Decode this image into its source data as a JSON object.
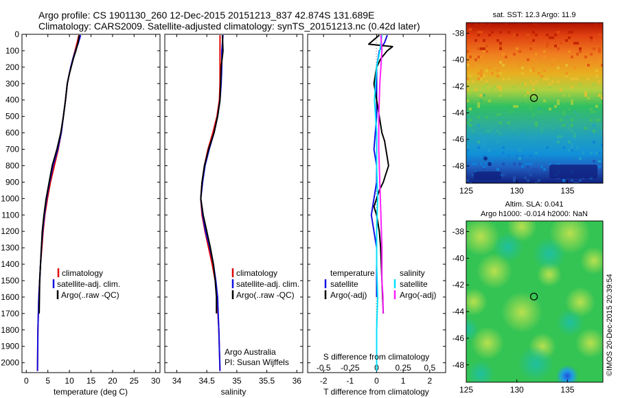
{
  "header": {
    "line1": "Argo profile: CS 1901130_260 12-Dec-2015 20151213_837 42.874S 131.689E",
    "line2": "Climatology: CARS2009. Satellite-adjusted climatology: synTS_20151213.nc (0.42d later)"
  },
  "colors": {
    "climatology": "#e00000",
    "satellite": "#1010e0",
    "argo": "#000000",
    "salinity_sat": "#00e0ff",
    "salinity_argo": "#ff20ff"
  },
  "chart_data": [
    {
      "type": "line",
      "panel": "temperature",
      "xlabel": "temperature (deg C)",
      "ylabel": "",
      "xlim": [
        -1,
        31
      ],
      "ylim": [
        2060,
        0
      ],
      "xticks": [
        0,
        5,
        10,
        15,
        20,
        25,
        30
      ],
      "yticks": [
        0,
        100,
        200,
        300,
        400,
        500,
        600,
        700,
        800,
        900,
        1000,
        1100,
        1200,
        1300,
        1400,
        1500,
        1600,
        1700,
        1800,
        1900,
        2000
      ],
      "legend": [
        "climatology",
        "satellite-adj. clim.",
        "Argo(..raw -QC)"
      ],
      "series": [
        {
          "name": "climatology",
          "color_key": "climatology",
          "x": [
            12.2,
            11.8,
            11.3,
            10.8,
            10.3,
            9.9,
            9.5,
            9.1,
            8.6,
            8.1,
            7.4,
            6.5,
            5.6,
            4.9,
            4.3,
            3.9,
            3.6,
            3.3,
            3.1,
            2.9,
            2.7,
            2.6
          ],
          "y": [
            5,
            50,
            100,
            150,
            200,
            250,
            300,
            400,
            500,
            600,
            700,
            800,
            900,
            1000,
            1100,
            1200,
            1300,
            1400,
            1500,
            1600,
            1800,
            2050
          ]
        },
        {
          "name": "satellite-adj. clim.",
          "color_key": "satellite",
          "x": [
            12.6,
            12.1,
            11.4,
            10.8,
            10.3,
            9.9,
            9.5,
            9.1,
            8.6,
            8.1,
            7.3,
            6.2,
            5.4,
            4.7,
            4.2,
            3.8,
            3.5,
            3.3,
            3.1,
            2.9,
            2.7,
            2.6
          ],
          "y": [
            5,
            50,
            100,
            150,
            200,
            250,
            300,
            400,
            500,
            600,
            700,
            800,
            900,
            1000,
            1100,
            1200,
            1300,
            1400,
            1500,
            1600,
            1800,
            2050
          ]
        },
        {
          "name": "Argo(..raw -QC)",
          "color_key": "argo",
          "x": [
            12.3,
            12.0,
            11.5,
            10.9,
            10.4,
            9.9,
            9.5,
            9.1,
            8.6,
            8.0,
            7.1,
            6.0,
            5.3,
            4.6,
            4.1,
            3.7,
            3.5,
            3.3,
            3.1,
            3.0
          ],
          "y": [
            5,
            50,
            100,
            150,
            200,
            250,
            300,
            400,
            500,
            600,
            700,
            800,
            900,
            1000,
            1100,
            1200,
            1300,
            1400,
            1500,
            1700
          ]
        }
      ]
    },
    {
      "type": "line",
      "panel": "salinity",
      "xlabel": "salinity",
      "ylabel": "",
      "xlim": [
        33.8,
        36.1
      ],
      "ylim": [
        2060,
        0
      ],
      "xticks": [
        34,
        34.5,
        35,
        35.5,
        36
      ],
      "xticklabels": [
        "34",
        "34.5",
        "35",
        "35.5",
        "36"
      ],
      "legend": [
        "climatology",
        "satellite-adj. clim.",
        "Argo(..raw -QC)"
      ],
      "annotation": [
        "Argo Australia",
        "PI: Susan Wijffels"
      ],
      "series": [
        {
          "name": "climatology",
          "color_key": "climatology",
          "x": [
            34.72,
            34.72,
            34.72,
            34.72,
            34.71,
            34.67,
            34.6,
            34.52,
            34.46,
            34.42,
            34.4,
            34.42,
            34.47,
            34.53,
            34.59,
            34.64,
            34.67,
            34.7,
            34.72
          ],
          "y": [
            5,
            100,
            200,
            300,
            400,
            500,
            600,
            700,
            800,
            900,
            1000,
            1100,
            1200,
            1300,
            1400,
            1500,
            1600,
            1800,
            2050
          ]
        },
        {
          "name": "satellite-adj. clim.",
          "color_key": "satellite",
          "x": [
            34.77,
            34.75,
            34.75,
            34.74,
            34.72,
            34.68,
            34.62,
            34.54,
            34.47,
            34.43,
            34.4,
            34.43,
            34.48,
            34.55,
            34.61,
            34.65,
            34.68,
            34.7,
            34.72
          ],
          "y": [
            5,
            100,
            200,
            300,
            400,
            500,
            600,
            700,
            800,
            900,
            1000,
            1100,
            1200,
            1300,
            1400,
            1500,
            1600,
            1800,
            2050
          ]
        },
        {
          "name": "Argo(..raw -QC)",
          "color_key": "argo",
          "x": [
            34.76,
            34.77,
            34.74,
            34.73,
            34.72,
            34.68,
            34.62,
            34.53,
            34.46,
            34.42,
            34.4,
            34.44,
            34.5,
            34.56,
            34.61,
            34.64,
            34.66,
            34.66
          ],
          "y": [
            5,
            100,
            200,
            300,
            400,
            500,
            600,
            700,
            800,
            900,
            1000,
            1100,
            1200,
            1300,
            1400,
            1500,
            1600,
            1700
          ]
        }
      ]
    },
    {
      "type": "line",
      "panel": "difference",
      "xlabel": "T difference from climatology",
      "xlabel_top": "S difference from climatology",
      "ylabel": "",
      "xlim": [
        -2.6,
        2.6
      ],
      "ylim": [
        2060,
        0
      ],
      "xticks": [
        -2,
        -1,
        0,
        1,
        2
      ],
      "xticks_top": [
        -0.5,
        -0.25,
        0,
        0.25,
        0.5
      ],
      "xticks_top_labels": [
        "-0.5",
        "-0.25",
        "0",
        "0.25",
        "0.5"
      ],
      "legend_left": {
        "title": "temperature",
        "items": [
          "satellite",
          "Argo(-adj)"
        ]
      },
      "legend_right": {
        "title": "salinity",
        "items": [
          "satellite",
          "Argo(-adj)"
        ]
      },
      "series": [
        {
          "name": "temperature satellite",
          "color_key": "satellite",
          "x": [
            0.4,
            0.3,
            0.1,
            0.0,
            0.0,
            0.0,
            0.0,
            -0.05,
            -0.1,
            0.0,
            0.0,
            -0.1,
            -0.2,
            -0.1,
            0.0,
            0.0,
            0.0,
            0.0
          ],
          "y": [
            5,
            50,
            100,
            200,
            300,
            400,
            500,
            600,
            700,
            800,
            900,
            1000,
            1100,
            1200,
            1300,
            1400,
            1500,
            1600
          ]
        },
        {
          "name": "temperature Argo(-adj)",
          "color_key": "argo",
          "x": [
            0.1,
            -0.3,
            0.6,
            0.4,
            0.15,
            0.0,
            -0.1,
            0.0,
            0.1,
            0.2,
            0.3,
            0.35,
            0.4,
            0.45,
            0.35,
            0.25,
            0.1,
            0.0,
            -0.1,
            0.0,
            0.1,
            0.15,
            0.2,
            0.25
          ],
          "y": [
            5,
            60,
            75,
            100,
            150,
            200,
            300,
            400,
            500,
            600,
            650,
            700,
            750,
            800,
            850,
            900,
            950,
            1000,
            1050,
            1100,
            1200,
            1300,
            1500,
            1700
          ]
        },
        {
          "name": "salinity satellite",
          "color_key": "salinity_sat",
          "x": [
            0.05,
            0.03,
            0.0,
            -0.02,
            0.0,
            0.0,
            0.01,
            0.0,
            0.0,
            0.01,
            0.0,
            0.0
          ],
          "y": [
            5,
            100,
            200,
            400,
            600,
            800,
            1000,
            1200,
            1400,
            1600,
            1800,
            2050
          ]
        },
        {
          "name": "salinity Argo(-adj)",
          "color_key": "salinity_argo",
          "x": [
            0.04,
            0.05,
            0.04,
            0.03,
            0.02,
            0.02,
            0.03,
            0.04,
            0.05,
            0.05,
            0.06,
            0.06
          ],
          "y": [
            5,
            100,
            200,
            300,
            500,
            700,
            900,
            1100,
            1300,
            1500,
            1600,
            1700
          ]
        }
      ]
    },
    {
      "type": "heatmap",
      "panel": "sst_map",
      "title": "sat. SST: 12.3 Argo: 11.9",
      "xlim": [
        125,
        138.5
      ],
      "ylim": [
        -49.3,
        -37.2
      ],
      "xticks": [
        125,
        130,
        135
      ],
      "yticks": [
        -38,
        -40,
        -42,
        -44,
        -46,
        -48
      ],
      "marker": {
        "lon": 131.689,
        "lat": -42.874
      }
    },
    {
      "type": "heatmap",
      "panel": "sla_map",
      "title": "Altim. SLA: 0.041",
      "subtitle": "Argo h1000: -0.014 h2000: NaN",
      "xlim": [
        125,
        138.5
      ],
      "ylim": [
        -49.3,
        -37.2
      ],
      "xticks": [
        125,
        130,
        135
      ],
      "yticks": [
        -38,
        -40,
        -42,
        -44,
        -46,
        -48
      ],
      "marker": {
        "lon": 131.689,
        "lat": -42.874
      }
    }
  ],
  "credit": "©IMOS 20-Dec-2015 20:39:54"
}
